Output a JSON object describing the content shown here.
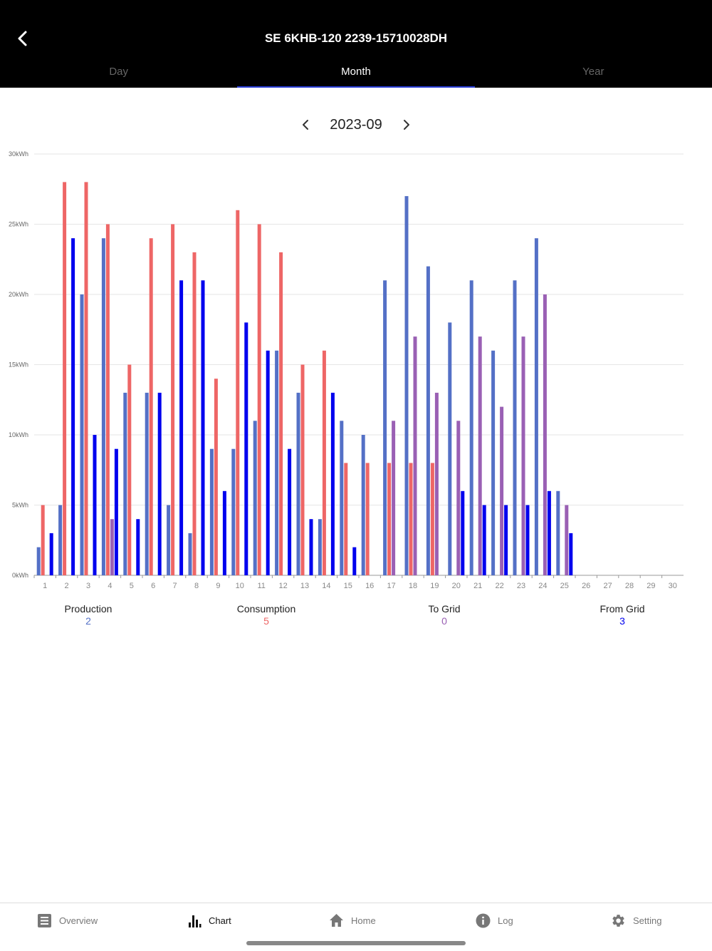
{
  "header": {
    "title": "SE 6KHB-120 2239-15710028DH",
    "tabs": [
      {
        "label": "Day"
      },
      {
        "label": "Month"
      },
      {
        "label": "Year"
      }
    ]
  },
  "period": {
    "label": "2023-09"
  },
  "chart_data": {
    "type": "bar",
    "categories": [
      "1",
      "2",
      "3",
      "4",
      "5",
      "6",
      "7",
      "8",
      "9",
      "10",
      "11",
      "12",
      "13",
      "14",
      "15",
      "16",
      "17",
      "18",
      "19",
      "20",
      "21",
      "22",
      "23",
      "24",
      "25",
      "26",
      "27",
      "28",
      "29",
      "30"
    ],
    "ytick_labels": [
      "0kWh",
      "5kWh",
      "10kWh",
      "15kWh",
      "20kWh",
      "25kWh",
      "30kWh"
    ],
    "ylim": [
      0,
      30
    ],
    "grid": true,
    "series": [
      {
        "name": "Production",
        "color": "#5470c6",
        "values": [
          2,
          5,
          20,
          24,
          13,
          13,
          5,
          3,
          9,
          9,
          11,
          16,
          13,
          4,
          11,
          10,
          21,
          27,
          22,
          18,
          21,
          16,
          21,
          24,
          6,
          0,
          0,
          0,
          0,
          0
        ]
      },
      {
        "name": "Consumption",
        "color": "#ee6666",
        "values": [
          5,
          28,
          28,
          25,
          15,
          24,
          25,
          23,
          14,
          26,
          25,
          23,
          15,
          16,
          8,
          8,
          8,
          8,
          8,
          0,
          0,
          0,
          0,
          0,
          0,
          0,
          0,
          0,
          0,
          0
        ]
      },
      {
        "name": "To Grid",
        "color": "#9a60b4",
        "values": [
          0,
          0,
          0,
          4,
          0,
          0,
          0,
          0,
          0,
          0,
          0,
          0,
          0,
          0,
          0,
          0,
          11,
          17,
          13,
          11,
          17,
          12,
          17,
          20,
          5,
          0,
          0,
          0,
          0,
          0
        ]
      },
      {
        "name": "From Grid",
        "color": "#0000ee",
        "values": [
          3,
          24,
          10,
          9,
          4,
          13,
          21,
          21,
          6,
          18,
          16,
          9,
          4,
          13,
          2,
          0,
          0,
          0,
          0,
          6,
          5,
          5,
          5,
          6,
          3,
          0,
          0,
          0,
          0,
          0
        ]
      }
    ]
  },
  "legend": [
    {
      "name": "Production",
      "value": "2",
      "color": "#5470c6"
    },
    {
      "name": "Consumption",
      "value": "5",
      "color": "#ee6666"
    },
    {
      "name": "To Grid",
      "value": "0",
      "color": "#9a60b4"
    },
    {
      "name": "From Grid",
      "value": "3",
      "color": "#0000ee"
    }
  ],
  "bottom_nav": [
    {
      "label": "Overview",
      "icon": "overview-icon"
    },
    {
      "label": "Chart",
      "icon": "chart-icon"
    },
    {
      "label": "Home",
      "icon": "home-icon"
    },
    {
      "label": "Log",
      "icon": "info-icon"
    },
    {
      "label": "Setting",
      "icon": "gear-icon"
    }
  ],
  "colors": {
    "header_bg": "#000000",
    "tab_indicator": "#2a3fd6"
  }
}
